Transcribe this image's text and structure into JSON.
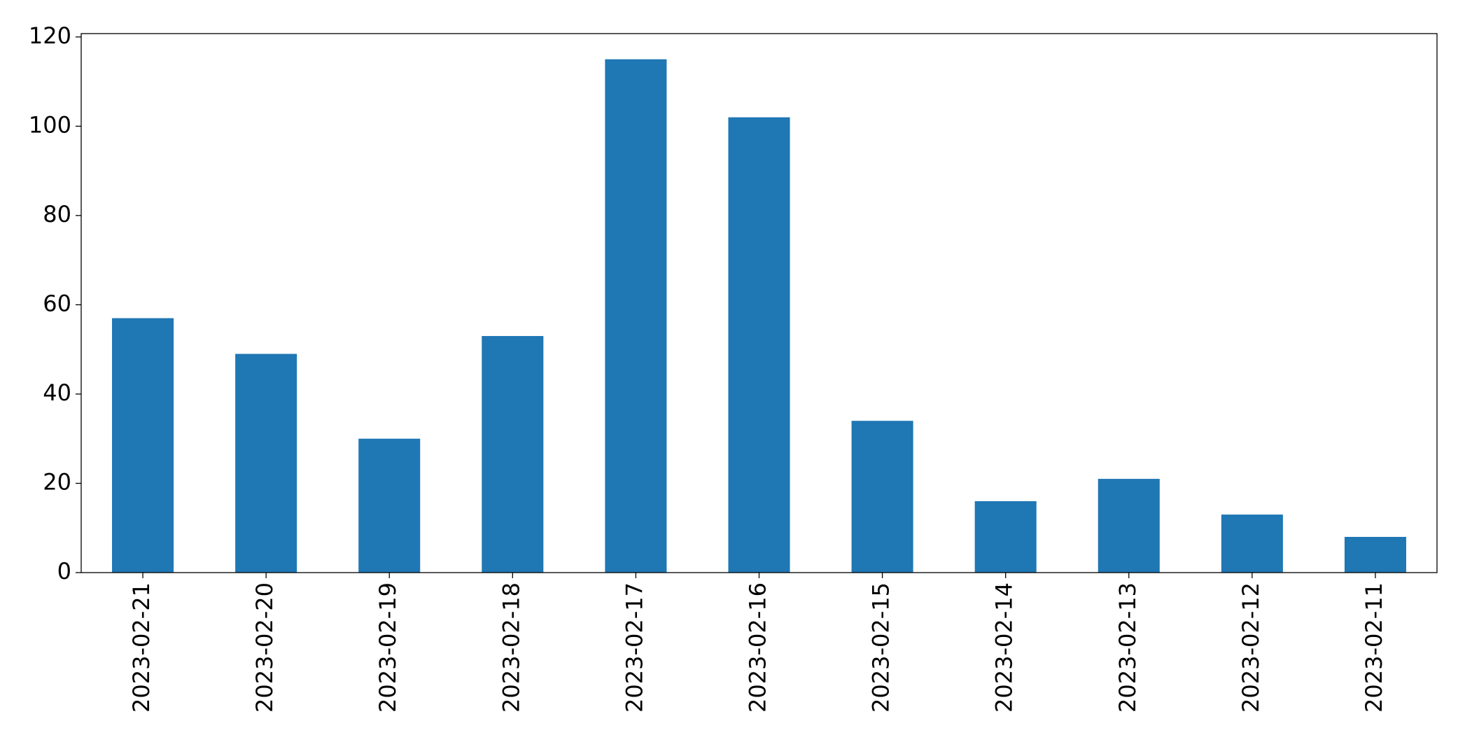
{
  "chart_data": {
    "type": "bar",
    "categories": [
      "2023-02-21",
      "2023-02-20",
      "2023-02-19",
      "2023-02-18",
      "2023-02-17",
      "2023-02-16",
      "2023-02-15",
      "2023-02-14",
      "2023-02-13",
      "2023-02-12",
      "2023-02-11"
    ],
    "values": [
      57,
      49,
      30,
      53,
      115,
      102,
      34,
      16,
      21,
      13,
      8
    ],
    "color": "#1f77b4",
    "ylim": [
      0,
      120.75
    ],
    "yticks": [
      0,
      20,
      40,
      60,
      80,
      100,
      120
    ],
    "grid": false
  }
}
